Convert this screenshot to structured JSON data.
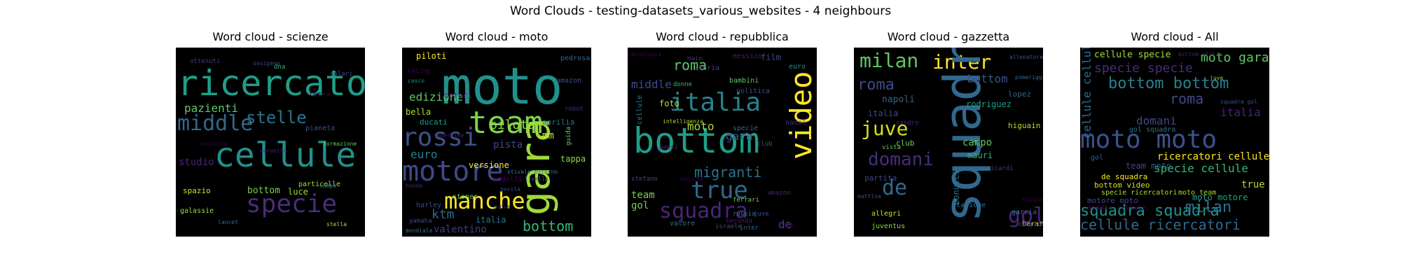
{
  "figure": {
    "title": "Word Clouds - testing-datasets_various_websites - 4 neighbours"
  },
  "chart_data": [
    {
      "type": "wordcloud",
      "title": "Word cloud - scienze",
      "words": [
        {
          "text": "ricercatori",
          "color": "#1f9e89"
        },
        {
          "text": "cellule",
          "color": "#21918c"
        },
        {
          "text": "middle",
          "color": "#31688e"
        },
        {
          "text": "specie",
          "color": "#472d7b"
        },
        {
          "text": "stelle",
          "color": "#2c728e"
        },
        {
          "text": "pazienti",
          "color": "#5ec962"
        },
        {
          "text": "studio",
          "color": "#482677"
        },
        {
          "text": "bottom",
          "color": "#7ad151"
        },
        {
          "text": "luce",
          "color": "#a0da39"
        },
        {
          "text": "spazio",
          "color": "#d0e11c"
        },
        {
          "text": "galassie",
          "color": "#a0da39"
        },
        {
          "text": "particelle",
          "color": "#aadc32"
        },
        {
          "text": "pianeta",
          "color": "#3b528b"
        },
        {
          "text": "terra",
          "color": "#440154"
        },
        {
          "text": "solari",
          "color": "#3e4989"
        },
        {
          "text": "ottenuti",
          "color": "#443a83"
        },
        {
          "text": "dna",
          "color": "#35b779"
        },
        {
          "text": "stella",
          "color": "#b5de2b"
        },
        {
          "text": "lancet",
          "color": "#31688e"
        },
        {
          "text": "formazione",
          "color": "#5ec962"
        },
        {
          "text": "ossigeno",
          "color": "#3e4989"
        },
        {
          "text": "campo",
          "color": "#26828e"
        },
        {
          "text": "velocità",
          "color": "#440154"
        },
        {
          "text": "cervello",
          "color": "#482677"
        }
      ]
    },
    {
      "type": "wordcloud",
      "title": "Word cloud - moto",
      "words": [
        {
          "text": "moto",
          "color": "#21918c"
        },
        {
          "text": "team",
          "color": "#7ad151"
        },
        {
          "text": "gara",
          "color": "#a0da39"
        },
        {
          "text": "rossi",
          "color": "#3b528b"
        },
        {
          "text": "motore",
          "color": "#3e4989"
        },
        {
          "text": "manche",
          "color": "#fde725"
        },
        {
          "text": "pilota",
          "color": "#a0da39"
        },
        {
          "text": "edizione",
          "color": "#5ec962"
        },
        {
          "text": "euro",
          "color": "#26828e"
        },
        {
          "text": "piloti",
          "color": "#fde725"
        },
        {
          "text": "ktm",
          "color": "#31688e"
        },
        {
          "text": "pista",
          "color": "#3e4989"
        },
        {
          "text": "bottom",
          "color": "#35b779"
        },
        {
          "text": "valentino",
          "color": "#443a83"
        },
        {
          "text": "italia",
          "color": "#2c728e"
        },
        {
          "text": "mm",
          "color": "#d0e11c"
        },
        {
          "text": "versione",
          "color": "#fde725"
        },
        {
          "text": "aprilia",
          "color": "#2c728e"
        },
        {
          "text": "tappa",
          "color": "#8fd744"
        },
        {
          "text": "bella",
          "color": "#b5de2b"
        },
        {
          "text": "ducati",
          "color": "#1f9e89"
        },
        {
          "text": "motori",
          "color": "#482677"
        },
        {
          "text": "harley",
          "color": "#3e4989"
        },
        {
          "text": "modelli",
          "color": "#440154"
        },
        {
          "text": "stoner",
          "color": "#6ece58"
        },
        {
          "text": "pedrosa",
          "color": "#31688e"
        },
        {
          "text": "amazon",
          "color": "#3b528b"
        },
        {
          "text": "racing",
          "color": "#440154"
        },
        {
          "text": "casco",
          "color": "#21918c"
        },
        {
          "text": "yamaha",
          "color": "#3e4989"
        },
        {
          "text": "robot",
          "color": "#472d7b"
        },
        {
          "text": "guida",
          "color": "#5ec962"
        },
        {
          "text": "honda",
          "color": "#482677"
        },
        {
          "text": "novità",
          "color": "#3e4989"
        },
        {
          "text": "livello",
          "color": "#31688e"
        },
        {
          "text": "superbike",
          "color": "#481f70"
        },
        {
          "text": "stivale esterno",
          "color": "#26828e"
        },
        {
          "text": "nuova",
          "color": "#481f70"
        },
        {
          "text": "mondiale",
          "color": "#2c728e"
        }
      ]
    },
    {
      "type": "wordcloud",
      "title": "Word cloud - repubblica",
      "words": [
        {
          "text": "bottom",
          "color": "#1f9e89"
        },
        {
          "text": "italia",
          "color": "#26828e"
        },
        {
          "text": "video",
          "color": "#fde725"
        },
        {
          "text": "true",
          "color": "#31688e"
        },
        {
          "text": "squadra",
          "color": "#482677"
        },
        {
          "text": "roma",
          "color": "#5ec962"
        },
        {
          "text": "migranti",
          "color": "#2c728e"
        },
        {
          "text": "middle",
          "color": "#3e4989"
        },
        {
          "text": "moto",
          "color": "#aadc32"
        },
        {
          "text": "team",
          "color": "#7ad151"
        },
        {
          "text": "gol",
          "color": "#6ece58"
        },
        {
          "text": "gara",
          "color": "#3b528b"
        },
        {
          "text": "de",
          "color": "#3e4989"
        },
        {
          "text": "foto",
          "color": "#b5de2b"
        },
        {
          "text": "film",
          "color": "#3e4989"
        },
        {
          "text": "euro",
          "color": "#21918c"
        },
        {
          "text": "nadal",
          "color": "#472d7b"
        },
        {
          "text": "cellule",
          "color": "#26828e"
        },
        {
          "text": "specie",
          "color": "#31688e"
        },
        {
          "text": "storia",
          "color": "#3e4989"
        },
        {
          "text": "messico",
          "color": "#481f70"
        },
        {
          "text": "bambini",
          "color": "#5ec962"
        },
        {
          "text": "politica",
          "color": "#3b528b"
        },
        {
          "text": "tecnologia",
          "color": "#440154"
        },
        {
          "text": "valore",
          "color": "#2c728e"
        },
        {
          "text": "seconda",
          "color": "#481f70"
        },
        {
          "text": "israele",
          "color": "#3e4989"
        },
        {
          "text": "inter",
          "color": "#31688e"
        },
        {
          "text": "usa",
          "color": "#440154"
        },
        {
          "text": "juve",
          "color": "#3b528b"
        },
        {
          "text": "amazon",
          "color": "#482677"
        },
        {
          "text": "ferrari",
          "color": "#6ece58"
        },
        {
          "text": "russia",
          "color": "#2c728e"
        },
        {
          "text": "cucina",
          "color": "#440154"
        },
        {
          "text": "stefano",
          "color": "#3e4989"
        },
        {
          "text": "donne",
          "color": "#35b779"
        },
        {
          "text": "maio",
          "color": "#472d7b"
        },
        {
          "text": "paesi",
          "color": "#481f70"
        },
        {
          "text": "club",
          "color": "#3b528b"
        },
        {
          "text": "intelligenza",
          "color": "#aadc32"
        }
      ]
    },
    {
      "type": "wordcloud",
      "title": "Word cloud - gazzetta",
      "words": [
        {
          "text": "milan",
          "color": "#5ec962"
        },
        {
          "text": "inter",
          "color": "#fde725"
        },
        {
          "text": "squadra",
          "color": "#31688e"
        },
        {
          "text": "roma",
          "color": "#3e4989"
        },
        {
          "text": "juve",
          "color": "#d0e11c"
        },
        {
          "text": "domani",
          "color": "#472d7b"
        },
        {
          "text": "de",
          "color": "#31688e"
        },
        {
          "text": "gol",
          "color": "#482677"
        },
        {
          "text": "bottom",
          "color": "#3b528b"
        },
        {
          "text": "napoli",
          "color": "#31688e"
        },
        {
          "text": "italia",
          "color": "#3e4989"
        },
        {
          "text": "campo",
          "color": "#5ec962"
        },
        {
          "text": "club",
          "color": "#6ece58"
        },
        {
          "text": "mauri",
          "color": "#35b779"
        },
        {
          "text": "bonucci",
          "color": "#2c728e"
        },
        {
          "text": "rodriguez",
          "color": "#1f9e89"
        },
        {
          "text": "lopez",
          "color": "#31688e"
        },
        {
          "text": "higuain",
          "color": "#b5de2b"
        },
        {
          "text": "partita",
          "color": "#3e4989"
        },
        {
          "text": "allegri",
          "color": "#d0e11c"
        },
        {
          "text": "garcia",
          "color": "#2c728e"
        },
        {
          "text": "juventus",
          "color": "#8fd744"
        },
        {
          "text": "berardi",
          "color": "#fde725"
        },
        {
          "text": "stagione",
          "color": "#2c728e"
        },
        {
          "text": "campionato",
          "color": "#3e4989"
        },
        {
          "text": "icardi",
          "color": "#443a83"
        },
        {
          "text": "vista",
          "color": "#5ec962"
        },
        {
          "text": "sandro",
          "color": "#482677"
        },
        {
          "text": "mattina",
          "color": "#3e4989"
        },
        {
          "text": "stadio",
          "color": "#440154"
        },
        {
          "text": "pomeriggio",
          "color": "#31688e"
        },
        {
          "text": "allenatore",
          "color": "#3b528b"
        }
      ]
    },
    {
      "type": "wordcloud",
      "title": "Word cloud - All",
      "words": [
        {
          "text": "moto moto",
          "color": "#3b528b"
        },
        {
          "text": "bottom bottom",
          "color": "#26828e"
        },
        {
          "text": "squadra squadra",
          "color": "#21918c"
        },
        {
          "text": "cellule ricercatori",
          "color": "#31688e"
        },
        {
          "text": "ricercatori cellule",
          "color": "#fde725"
        },
        {
          "text": "specie cellule",
          "color": "#35b779"
        },
        {
          "text": "specie specie",
          "color": "#472d7b"
        },
        {
          "text": "milan",
          "color": "#2c728e"
        },
        {
          "text": "moto gara",
          "color": "#5ec962"
        },
        {
          "text": "roma",
          "color": "#3e4989"
        },
        {
          "text": "cellule specie",
          "color": "#a0da39"
        },
        {
          "text": "cellule cellule",
          "color": "#31688e"
        },
        {
          "text": "italia",
          "color": "#482677"
        },
        {
          "text": "domani",
          "color": "#3e4989"
        },
        {
          "text": "true",
          "color": "#b5de2b"
        },
        {
          "text": "gol squadra",
          "color": "#2c728e"
        },
        {
          "text": "team moto",
          "color": "#3e4989"
        },
        {
          "text": "motore moto",
          "color": "#3e4989"
        },
        {
          "text": "de squadra",
          "color": "#fde725"
        },
        {
          "text": "bottom video",
          "color": "#d0e11c"
        },
        {
          "text": "specie ricercatori",
          "color": "#aadc32"
        },
        {
          "text": "moto motore",
          "color": "#1f9e89"
        },
        {
          "text": "middle cellule",
          "color": "#440154"
        },
        {
          "text": "moto team",
          "color": "#a0da39"
        },
        {
          "text": "bottom italia",
          "color": "#481f70"
        },
        {
          "text": "juve",
          "color": "#8fd744"
        },
        {
          "text": "gol",
          "color": "#31688e"
        },
        {
          "text": "squadra gol",
          "color": "#3b528b"
        }
      ]
    }
  ]
}
